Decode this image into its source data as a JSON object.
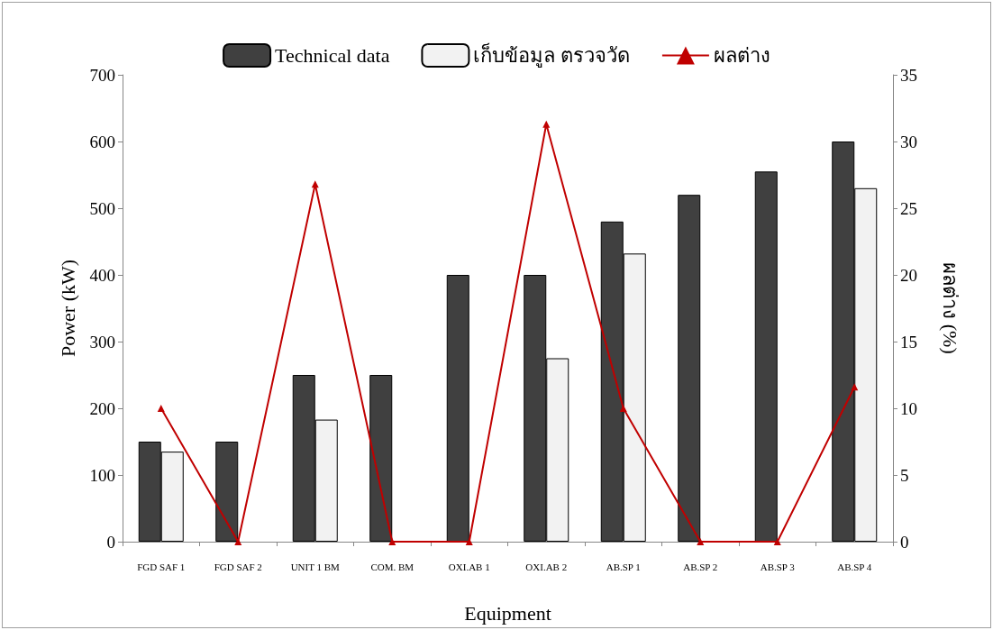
{
  "chart_data": {
    "type": "bar",
    "xlabel": "Equipment",
    "ylabel": "Power (kW)",
    "y2label": "ผลต่าง (%)",
    "categories": [
      "FGD SAF 1",
      "FGD SAF 2",
      "UNIT 1 BM",
      "COM. BM",
      "OXI.AB 1",
      "OXI.AB 2",
      "AB.SP 1",
      "AB.SP 2",
      "AB.SP 3",
      "AB.SP 4"
    ],
    "series": [
      {
        "name": "Technical data",
        "color": "#404040",
        "values": [
          150,
          150,
          250,
          250,
          400,
          400,
          480,
          520,
          555,
          600
        ]
      },
      {
        "name": "เก็บข้อมูล ตรวจวัด",
        "color": "#f2f2f2",
        "values": [
          135,
          null,
          183,
          null,
          null,
          275,
          432,
          null,
          null,
          530
        ]
      },
      {
        "name": "ผลต่าง",
        "type": "line",
        "axis": "y2",
        "color": "#c00000",
        "marker": "triangle",
        "line_style": "solid",
        "values": [
          10,
          0,
          26.8,
          0,
          0,
          31.3,
          10,
          0,
          0,
          11.6
        ]
      }
    ],
    "ylim": [
      0,
      700
    ],
    "yticks": [
      0,
      100,
      200,
      300,
      400,
      500,
      600,
      700
    ],
    "y2lim": [
      0,
      35
    ],
    "y2ticks": [
      0,
      5,
      10,
      15,
      20,
      25,
      30,
      35
    ],
    "grid": false,
    "legend": "top"
  }
}
